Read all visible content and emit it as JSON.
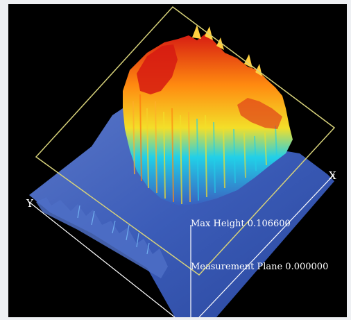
{
  "axes": {
    "x_label": "X",
    "y_label": "Y"
  },
  "readouts": {
    "max_height": "Max Height 0.106600",
    "measurement_plane": "Measurement Plane 0.000000"
  },
  "colors": {
    "background": "#000000",
    "frame_outline": "#d7d27a",
    "base_outline": "#ffffff",
    "surface_low": "#3a5fc0",
    "surface_mid": "#22d0e8",
    "surface_high": "#f3df29",
    "surface_peak": "#d61a12"
  }
}
